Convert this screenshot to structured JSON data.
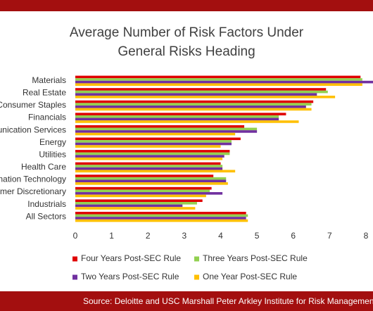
{
  "chart_data": {
    "type": "hbar",
    "title": "Average Number of Risk Factors Under General Risks Heading",
    "source": "Source: Deloitte and USC Marshall Peter Arkley Institute for Risk Management",
    "categories": [
      "Materials",
      "Real Estate",
      "Consumer Staples",
      "Financials",
      "Communication Services",
      "Energy",
      "Utilities",
      "Health Care",
      "Information Technology",
      "Consumer Discretionary",
      "Industrials",
      "All Sectors"
    ],
    "series": [
      {
        "name": "Four Years Post-SEC Rule",
        "color": "#e00000",
        "values": [
          7.85,
          6.9,
          6.55,
          5.8,
          4.65,
          4.55,
          4.25,
          4.0,
          3.8,
          3.75,
          3.5,
          4.7
        ]
      },
      {
        "name": "Three Years Post-SEC Rule",
        "color": "#92d050",
        "values": [
          7.9,
          6.95,
          6.5,
          5.6,
          5.0,
          4.3,
          4.25,
          4.05,
          4.15,
          3.7,
          3.35,
          4.75
        ]
      },
      {
        "name": "Two Years Post-SEC Rule",
        "color": "#7030a0",
        "values": [
          8.3,
          6.65,
          6.35,
          5.6,
          5.0,
          4.3,
          4.1,
          4.05,
          4.15,
          4.05,
          2.95,
          4.7
        ]
      },
      {
        "name": "One Year Post-SEC Rule",
        "color": "#ffc000",
        "values": [
          7.9,
          7.15,
          6.5,
          6.15,
          4.4,
          4.0,
          4.05,
          4.4,
          4.2,
          3.6,
          3.3,
          4.75
        ]
      }
    ],
    "xlim": [
      0,
      8
    ],
    "xticks": [
      0,
      1,
      2,
      3,
      4,
      5,
      6,
      7,
      8
    ],
    "grid": false
  }
}
